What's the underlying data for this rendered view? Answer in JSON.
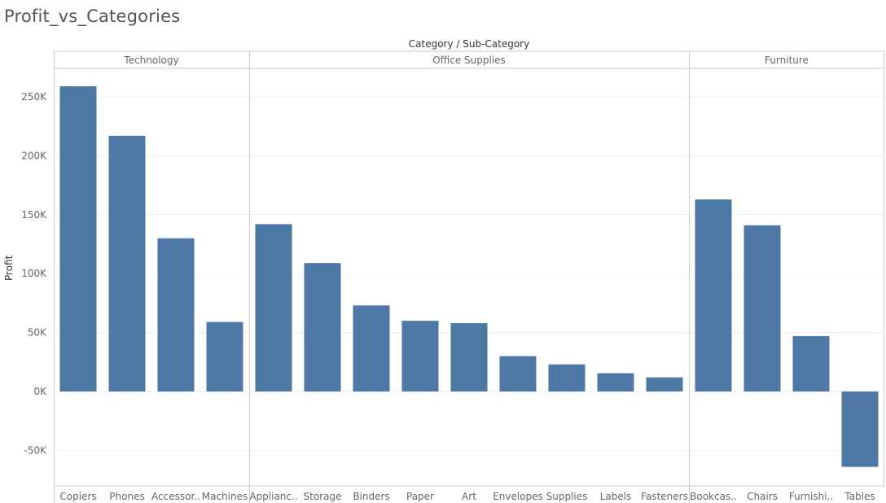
{
  "title": "Profit_vs_Categories",
  "header_label": "Category / Sub-Category",
  "colors": {
    "bar": "#4e79a7",
    "grid": "#efefef",
    "divider": "#c8c8c8",
    "tick_text": "#666666",
    "zero_line": "#c8c8c8"
  },
  "chart_data": {
    "type": "bar",
    "ylabel": "Profit",
    "ylim": [
      -75000,
      275000
    ],
    "yticks": [
      -50000,
      0,
      50000,
      100000,
      150000,
      200000,
      250000
    ],
    "ytick_labels": [
      "-50K",
      "0K",
      "50K",
      "100K",
      "150K",
      "200K",
      "250K"
    ],
    "grid": true,
    "groups": [
      {
        "name": "Technology",
        "categories": [
          "Copiers",
          "Phones",
          "Accessor..",
          "Machines"
        ],
        "values": [
          259000,
          217000,
          130000,
          59000
        ]
      },
      {
        "name": "Office Supplies",
        "categories": [
          "Applianc..",
          "Storage",
          "Binders",
          "Paper",
          "Art",
          "Envelopes",
          "Supplies",
          "Labels",
          "Fasteners"
        ],
        "values": [
          142000,
          109000,
          73000,
          60000,
          58000,
          30000,
          23000,
          15500,
          12000
        ]
      },
      {
        "name": "Furniture",
        "categories": [
          "Bookcas..",
          "Chairs",
          "Furnishi..",
          "Tables"
        ],
        "values": [
          163000,
          141000,
          47000,
          -64000
        ]
      }
    ]
  }
}
